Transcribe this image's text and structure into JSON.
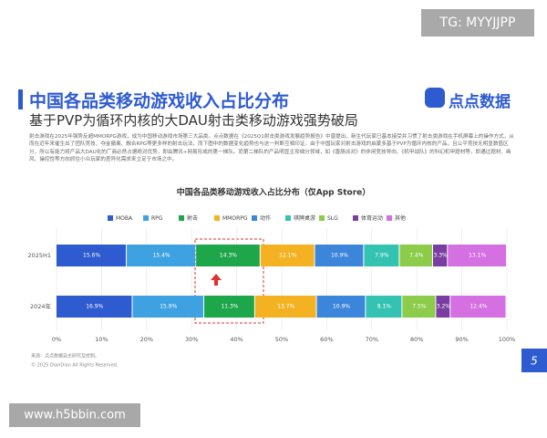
{
  "overlay": {
    "tag": "TG: MYYJJPP",
    "site": "www.h5bbin.com"
  },
  "header": {
    "title": "中国各品类移动游戏收入占比分布",
    "subtitle": "基于PVP为循环内核的大DAU射击类移动游戏强势破局",
    "logo": "点点数据"
  },
  "body": "射击游戏在2025年强势反超MMORPG游戏，成为中国移动游戏市场第三大品类。点点数据在《2025Q1射击类游戏发展趋势报告》中曾提出，新生代玩家已基本接受并习惯了射击类游戏在手机屏幕上的操作方式，从而在近年来催生出了团队竞技、夺金撤离、融合RPG等更多样的射击玩法，而下图中的数据变化趋势也与这一判断互相印证。由于中国玩家对射击游戏的启蒙多基于PVP为循环内核的产品，且公平竞技无明显数值区分，所以有能力将产品大DAU化的厂商必然占据绝对优势，即由腾讯+网易形成的第一梯队。而第二梯队的产品明显主攻细分领域，如《香肠派对》的休闲竞技导向、《机甲战队》的科幻机甲题材等，即通过题材、画风、操控性等方向抓住小众玩家的差异化需求来立足于市场之中。",
  "footer": {
    "source": "来源：点点数据自主研究及绘制。",
    "copyright": "© 2025 DianDian All Rights Reserved.",
    "page": "5"
  },
  "chart_data": {
    "type": "stacked-bar-horizontal",
    "title": "中国各品类移动游戏收入占比分布（仅App Store）",
    "categories": [
      "2025H1",
      "2024年"
    ],
    "series": [
      {
        "name": "MOBA",
        "color": "#2e5bd0",
        "values": [
          15.6,
          16.9
        ],
        "value_labels": [
          "15.6%",
          "16.9%"
        ]
      },
      {
        "name": "RPG",
        "color": "#3ea2e2",
        "values": [
          15.4,
          15.9
        ],
        "value_labels": [
          "15.4%",
          "15.9%"
        ]
      },
      {
        "name": "射击",
        "color": "#1ea64a",
        "values": [
          14.3,
          11.3
        ],
        "value_labels": [
          "14.3%",
          "11.3%"
        ]
      },
      {
        "name": "MMORPG",
        "color": "#f4b223",
        "values": [
          12.1,
          13.7
        ],
        "value_labels": [
          "12.1%",
          "13.7%"
        ]
      },
      {
        "name": "动作",
        "color": "#3b86da",
        "values": [
          10.9,
          10.9
        ],
        "value_labels": [
          "10.9%",
          "10.9%"
        ]
      },
      {
        "name": "棋牌桌游",
        "color": "#34c3b2",
        "values": [
          7.9,
          8.1
        ],
        "value_labels": [
          "7.9%",
          "8.1%"
        ]
      },
      {
        "name": "SLG",
        "color": "#8ccc4a",
        "values": [
          7.4,
          7.5
        ],
        "value_labels": [
          "7.4%",
          "7.5%"
        ]
      },
      {
        "name": "体育运动",
        "color": "#7a3ea0",
        "values": [
          3.3,
          3.2
        ],
        "value_labels": [
          "3.3%",
          "3.2%"
        ]
      },
      {
        "name": "其他",
        "color": "#d470e2",
        "values": [
          13.1,
          12.4
        ],
        "value_labels": [
          "13.1%",
          "12.4%"
        ]
      }
    ],
    "xlim": [
      0,
      100
    ],
    "xticks": [
      {
        "value": 0,
        "label": "0%"
      },
      {
        "value": 10,
        "label": "10%"
      },
      {
        "value": 20,
        "label": "20%"
      },
      {
        "value": 30,
        "label": "30%"
      },
      {
        "value": 40,
        "label": "40%"
      },
      {
        "value": 50,
        "label": "50%"
      },
      {
        "value": 60,
        "label": "60%"
      },
      {
        "value": 70,
        "label": "70%"
      },
      {
        "value": 80,
        "label": "80%"
      },
      {
        "value": 90,
        "label": "90%"
      },
      {
        "value": 100,
        "label": "100%"
      }
    ],
    "grid": true
  }
}
